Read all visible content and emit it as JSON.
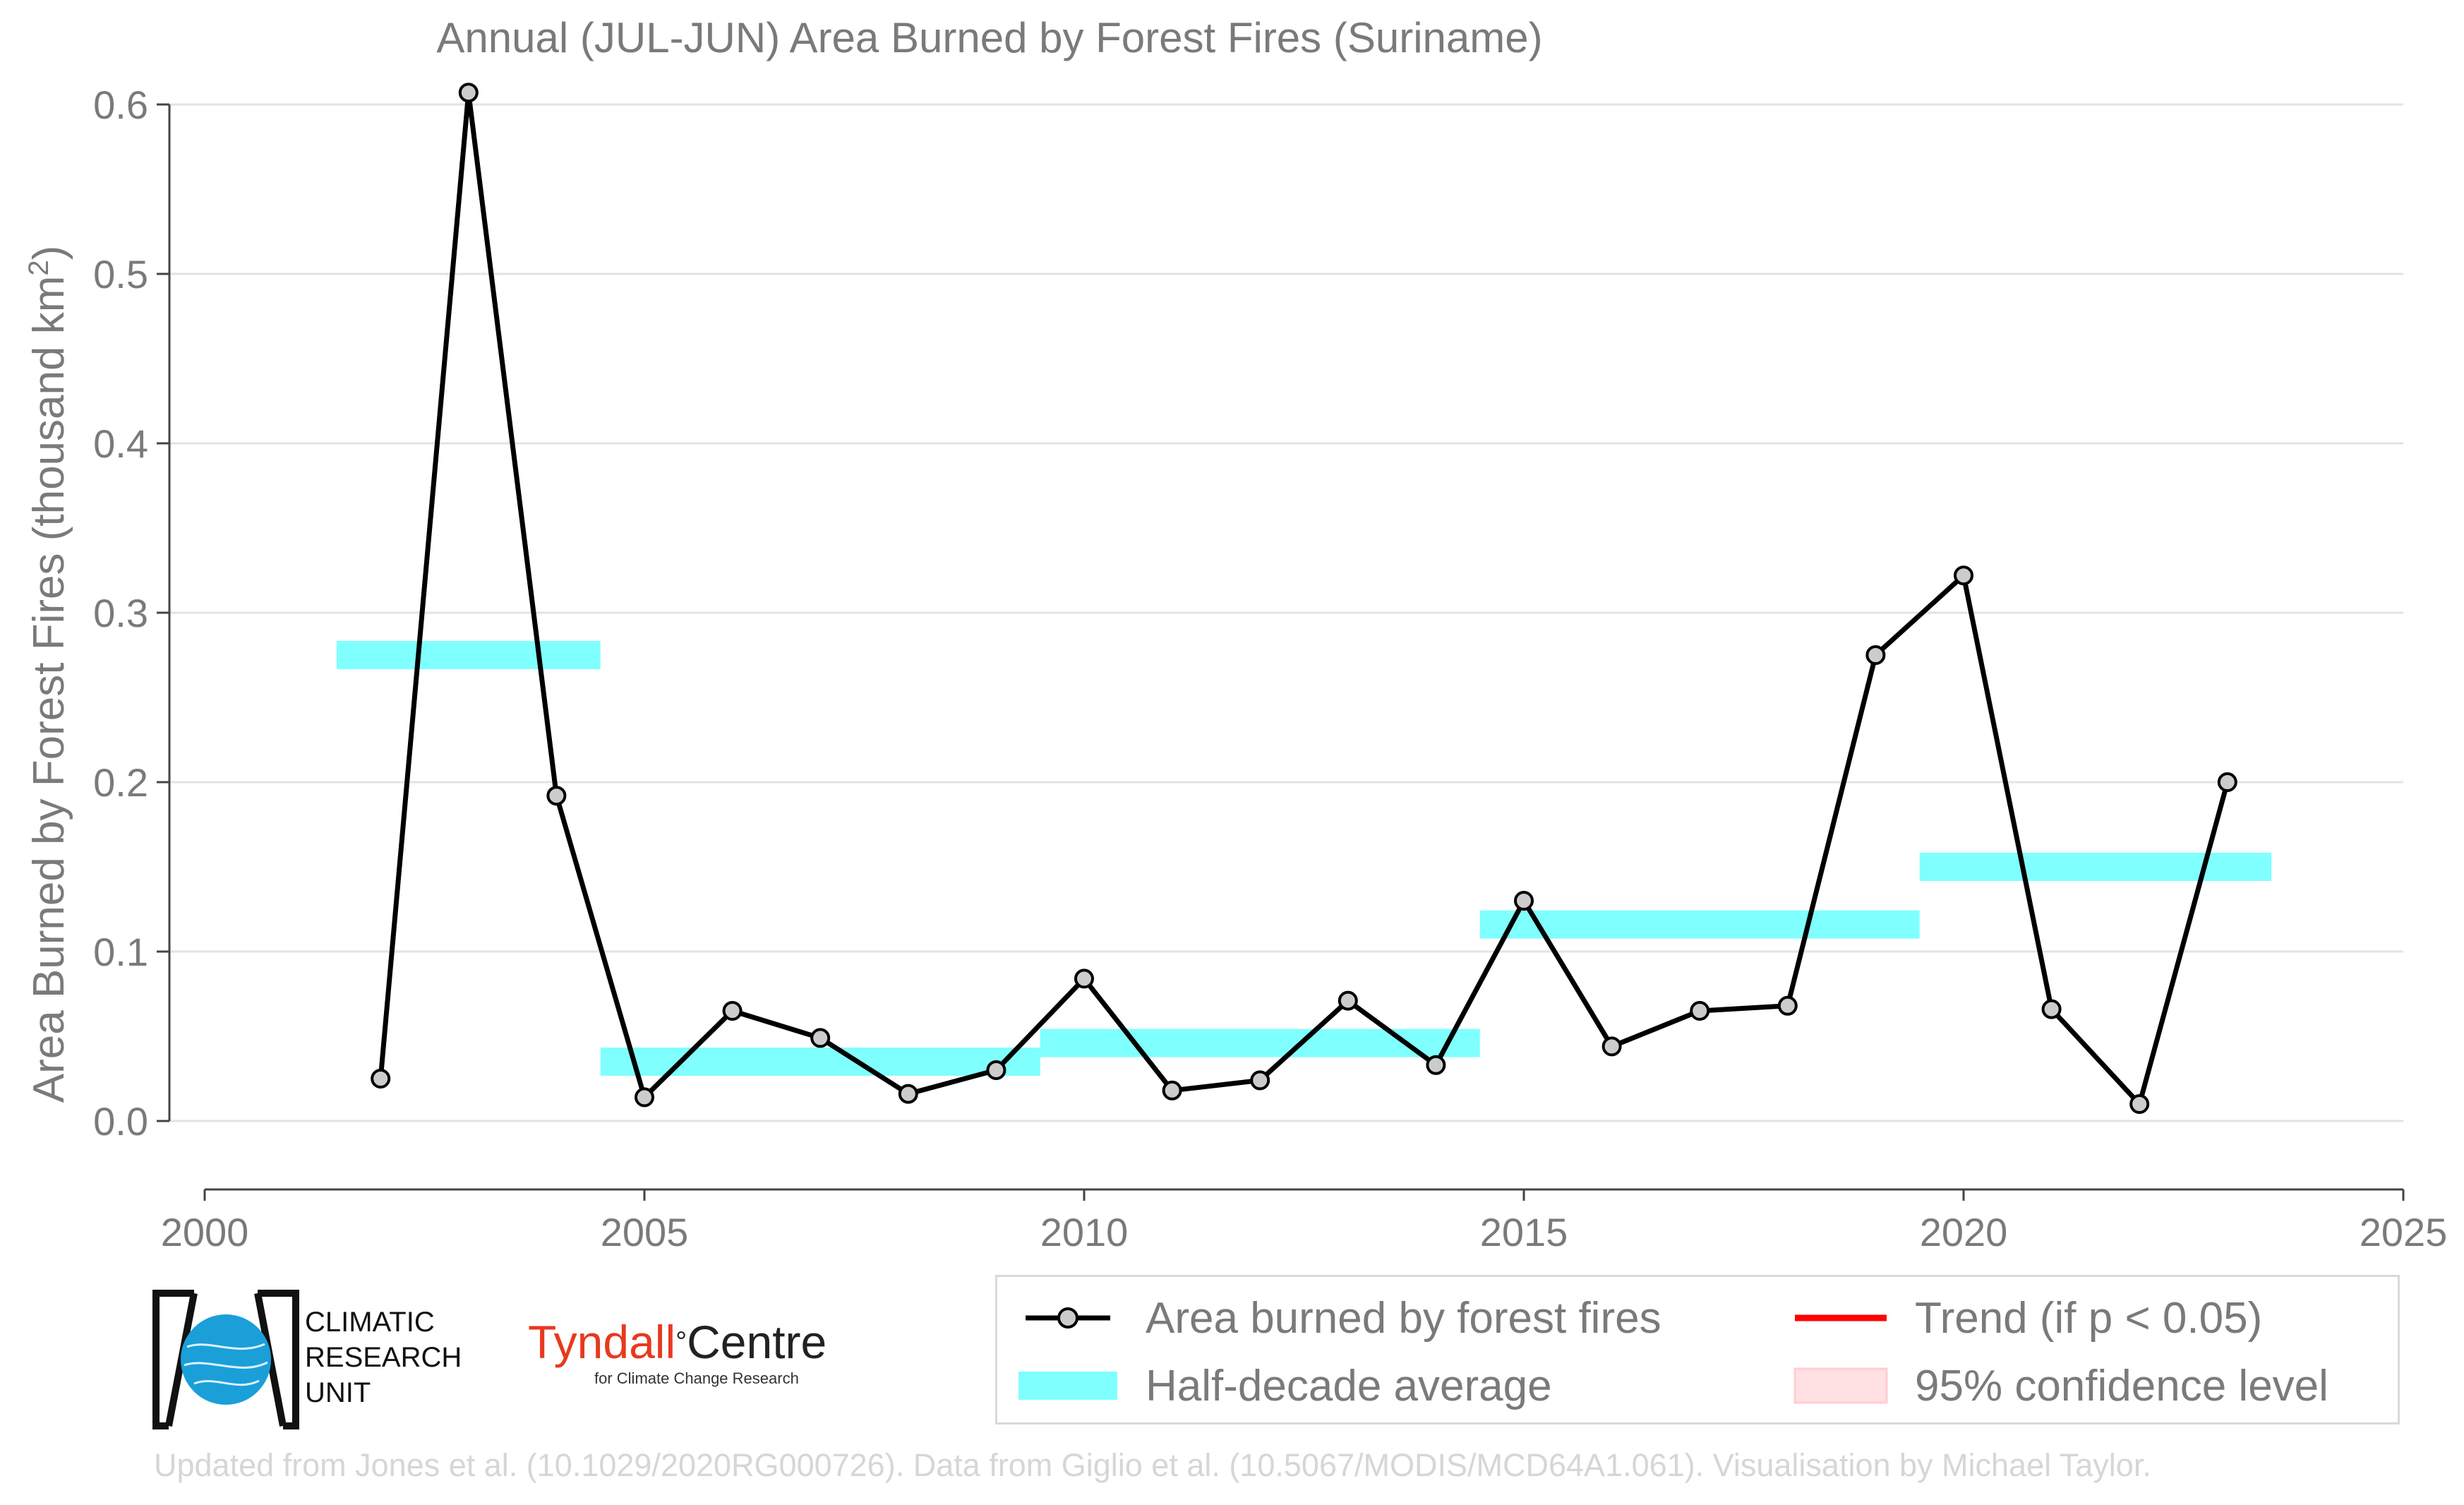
{
  "chart_data": {
    "type": "line",
    "title": "Annual (JUL-JUN) Area Burned by Forest Fires (Suriname)",
    "ylabel": "Area Burned by Forest Fires (thousand km",
    "ylabel_sup": "2",
    "ylabel_close": ")",
    "xlim": [
      2000,
      2025
    ],
    "ylim": [
      -0.03,
      0.62
    ],
    "xticks": [
      "2000",
      "2005",
      "2010",
      "2015",
      "2020",
      "2025"
    ],
    "yticks": [
      "0.0",
      "0.1",
      "0.2",
      "0.3",
      "0.4",
      "0.5",
      "0.6"
    ],
    "grid": true,
    "series": [
      {
        "name": "Area burned by forest fires",
        "color": "#000000",
        "marker_fill": "#cccccc",
        "x": [
          2002,
          2003,
          2004,
          2005,
          2006,
          2007,
          2008,
          2009,
          2010,
          2011,
          2012,
          2013,
          2014,
          2015,
          2016,
          2017,
          2018,
          2019,
          2020,
          2021,
          2022,
          2023
        ],
        "y": [
          0.025,
          0.607,
          0.192,
          0.014,
          0.065,
          0.049,
          0.016,
          0.03,
          0.084,
          0.018,
          0.024,
          0.071,
          0.033,
          0.13,
          0.044,
          0.065,
          0.068,
          0.275,
          0.322,
          0.066,
          0.01,
          0.2
        ]
      }
    ],
    "half_decade_averages": [
      {
        "start": 2001.5,
        "end": 2004.5,
        "value": 0.275
      },
      {
        "start": 2004.5,
        "end": 2009.5,
        "value": 0.035
      },
      {
        "start": 2009.5,
        "end": 2014.5,
        "value": 0.046
      },
      {
        "start": 2014.5,
        "end": 2019.5,
        "value": 0.116
      },
      {
        "start": 2019.5,
        "end": 2023.5,
        "value": 0.15
      }
    ],
    "half_decade_color": "#80ffff"
  },
  "legend": {
    "placement": "bottom-right",
    "items": [
      {
        "label": "Area burned by forest fires",
        "icon": "line-marker"
      },
      {
        "label": "Trend (if p < 0.05)",
        "icon": "red-line",
        "color": "#ff0000"
      },
      {
        "label": "Half-decade average",
        "icon": "cyan-bar",
        "color": "#80ffff"
      },
      {
        "label": "95% confidence level",
        "icon": "pink-box",
        "color": "#ffe0e3"
      }
    ]
  },
  "logos": {
    "cru": [
      "CLIMATIC",
      "RESEARCH",
      "UNIT"
    ],
    "tyndall_main_a": "Tyndall",
    "tyndall_degree": "°",
    "tyndall_main_b": "Centre",
    "tyndall_sub": "for Climate Change Research"
  },
  "footer": "Updated from Jones et al. (10.1029/2020RG000726). Data from Giglio et al. (10.5067/MODIS/MCD64A1.061). Visualisation by Michael Taylor."
}
